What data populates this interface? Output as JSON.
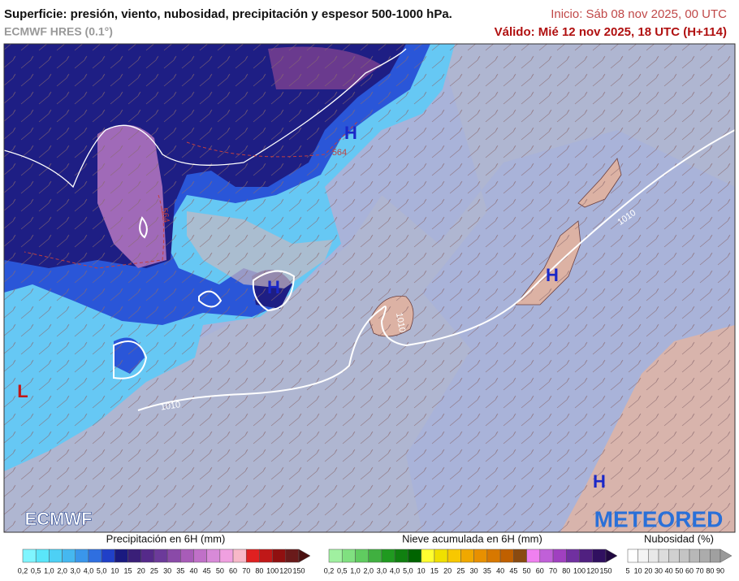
{
  "header": {
    "title": "Superficie: presión, viento, nubosidad, precipitación y espesor 500-1000 hPa.",
    "model": "ECMWF HRES (0.1°)",
    "init": "Inicio: Sáb 08 nov 2025, 00 UTC",
    "valid": "Válido: Mié 12 nov 2025, 18 UTC (H+114)"
  },
  "map": {
    "highs": [
      "H",
      "H",
      "H",
      "H"
    ],
    "lows": [
      "L"
    ],
    "isobars": [
      "1010",
      "1010",
      "1010"
    ],
    "thickness": [
      "564",
      "564"
    ]
  },
  "logos": {
    "left": "ECMWF",
    "right": "METEORED"
  },
  "legends": [
    {
      "title": "Precipitación en 6H (mm)",
      "labels": [
        "0,2",
        "0,5",
        "1,0",
        "2,0",
        "3,0",
        "4,0",
        "5,0",
        "10",
        "15",
        "20",
        "25",
        "30",
        "35",
        "40",
        "45",
        "50",
        "60",
        "70",
        "80",
        "100",
        "120",
        "150"
      ],
      "colors": [
        "#7ff5ff",
        "#5ae6fa",
        "#4dd0f5",
        "#45b8f0",
        "#3a96eb",
        "#2f6fe0",
        "#2040c8",
        "#1a1a80",
        "#3a1f78",
        "#552a8a",
        "#6c3a9a",
        "#8a4aa8",
        "#a85cb8",
        "#c070c8",
        "#d88ad8",
        "#f0a0e0",
        "#f8b8c8",
        "#e02020",
        "#c01818",
        "#901010",
        "#6a1a1a"
      ],
      "arrow": "#4a1010"
    },
    {
      "title": "Nieve acumulada en 6H (mm)",
      "labels": [
        "0,2",
        "0,5",
        "1,0",
        "2,0",
        "3,0",
        "4,0",
        "5,0",
        "10",
        "15",
        "20",
        "25",
        "30",
        "35",
        "40",
        "45",
        "50",
        "60",
        "70",
        "80",
        "100",
        "120",
        "150"
      ],
      "colors": [
        "#a0f0a0",
        "#80e080",
        "#60cc60",
        "#40b040",
        "#209a20",
        "#108010",
        "#006400",
        "#ffff30",
        "#f0e000",
        "#f8c800",
        "#f0a800",
        "#e89000",
        "#d87800",
        "#c06000",
        "#8a4a10",
        "#f080f0",
        "#c060d8",
        "#a040c0",
        "#7030a0",
        "#502080",
        "#301060"
      ],
      "arrow": "#200840"
    },
    {
      "title": "Nubosidad (%)",
      "labels": [
        "5",
        "10",
        "20",
        "30",
        "40",
        "50",
        "60",
        "70",
        "80",
        "90"
      ],
      "colors": [
        "#ffffff",
        "#f4f4f4",
        "#e8e8e8",
        "#dcdcdc",
        "#d0d0d0",
        "#c4c4c4",
        "#b8b8b8",
        "#acacac",
        "#a0a0a0"
      ],
      "arrow": "#999999"
    }
  ]
}
